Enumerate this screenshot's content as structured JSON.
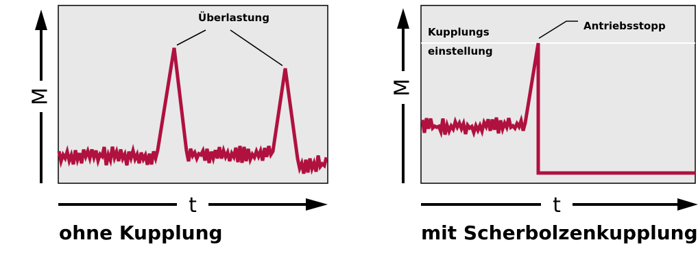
{
  "left_panel": {
    "caption": "ohne Kupplung",
    "y_axis_label": "M",
    "x_axis_label": "t",
    "annotation": "Überlastung"
  },
  "right_panel": {
    "caption": "mit Scherbolzenkupplung",
    "y_axis_label": "M",
    "x_axis_label": "t",
    "annotation_setting_line1": "Kupplungs",
    "annotation_setting_line2": "einstellung",
    "annotation_stop": "Antriebsstopp"
  },
  "colors": {
    "signal": "#b0113f",
    "panel_background": "#e8e8e8"
  }
}
